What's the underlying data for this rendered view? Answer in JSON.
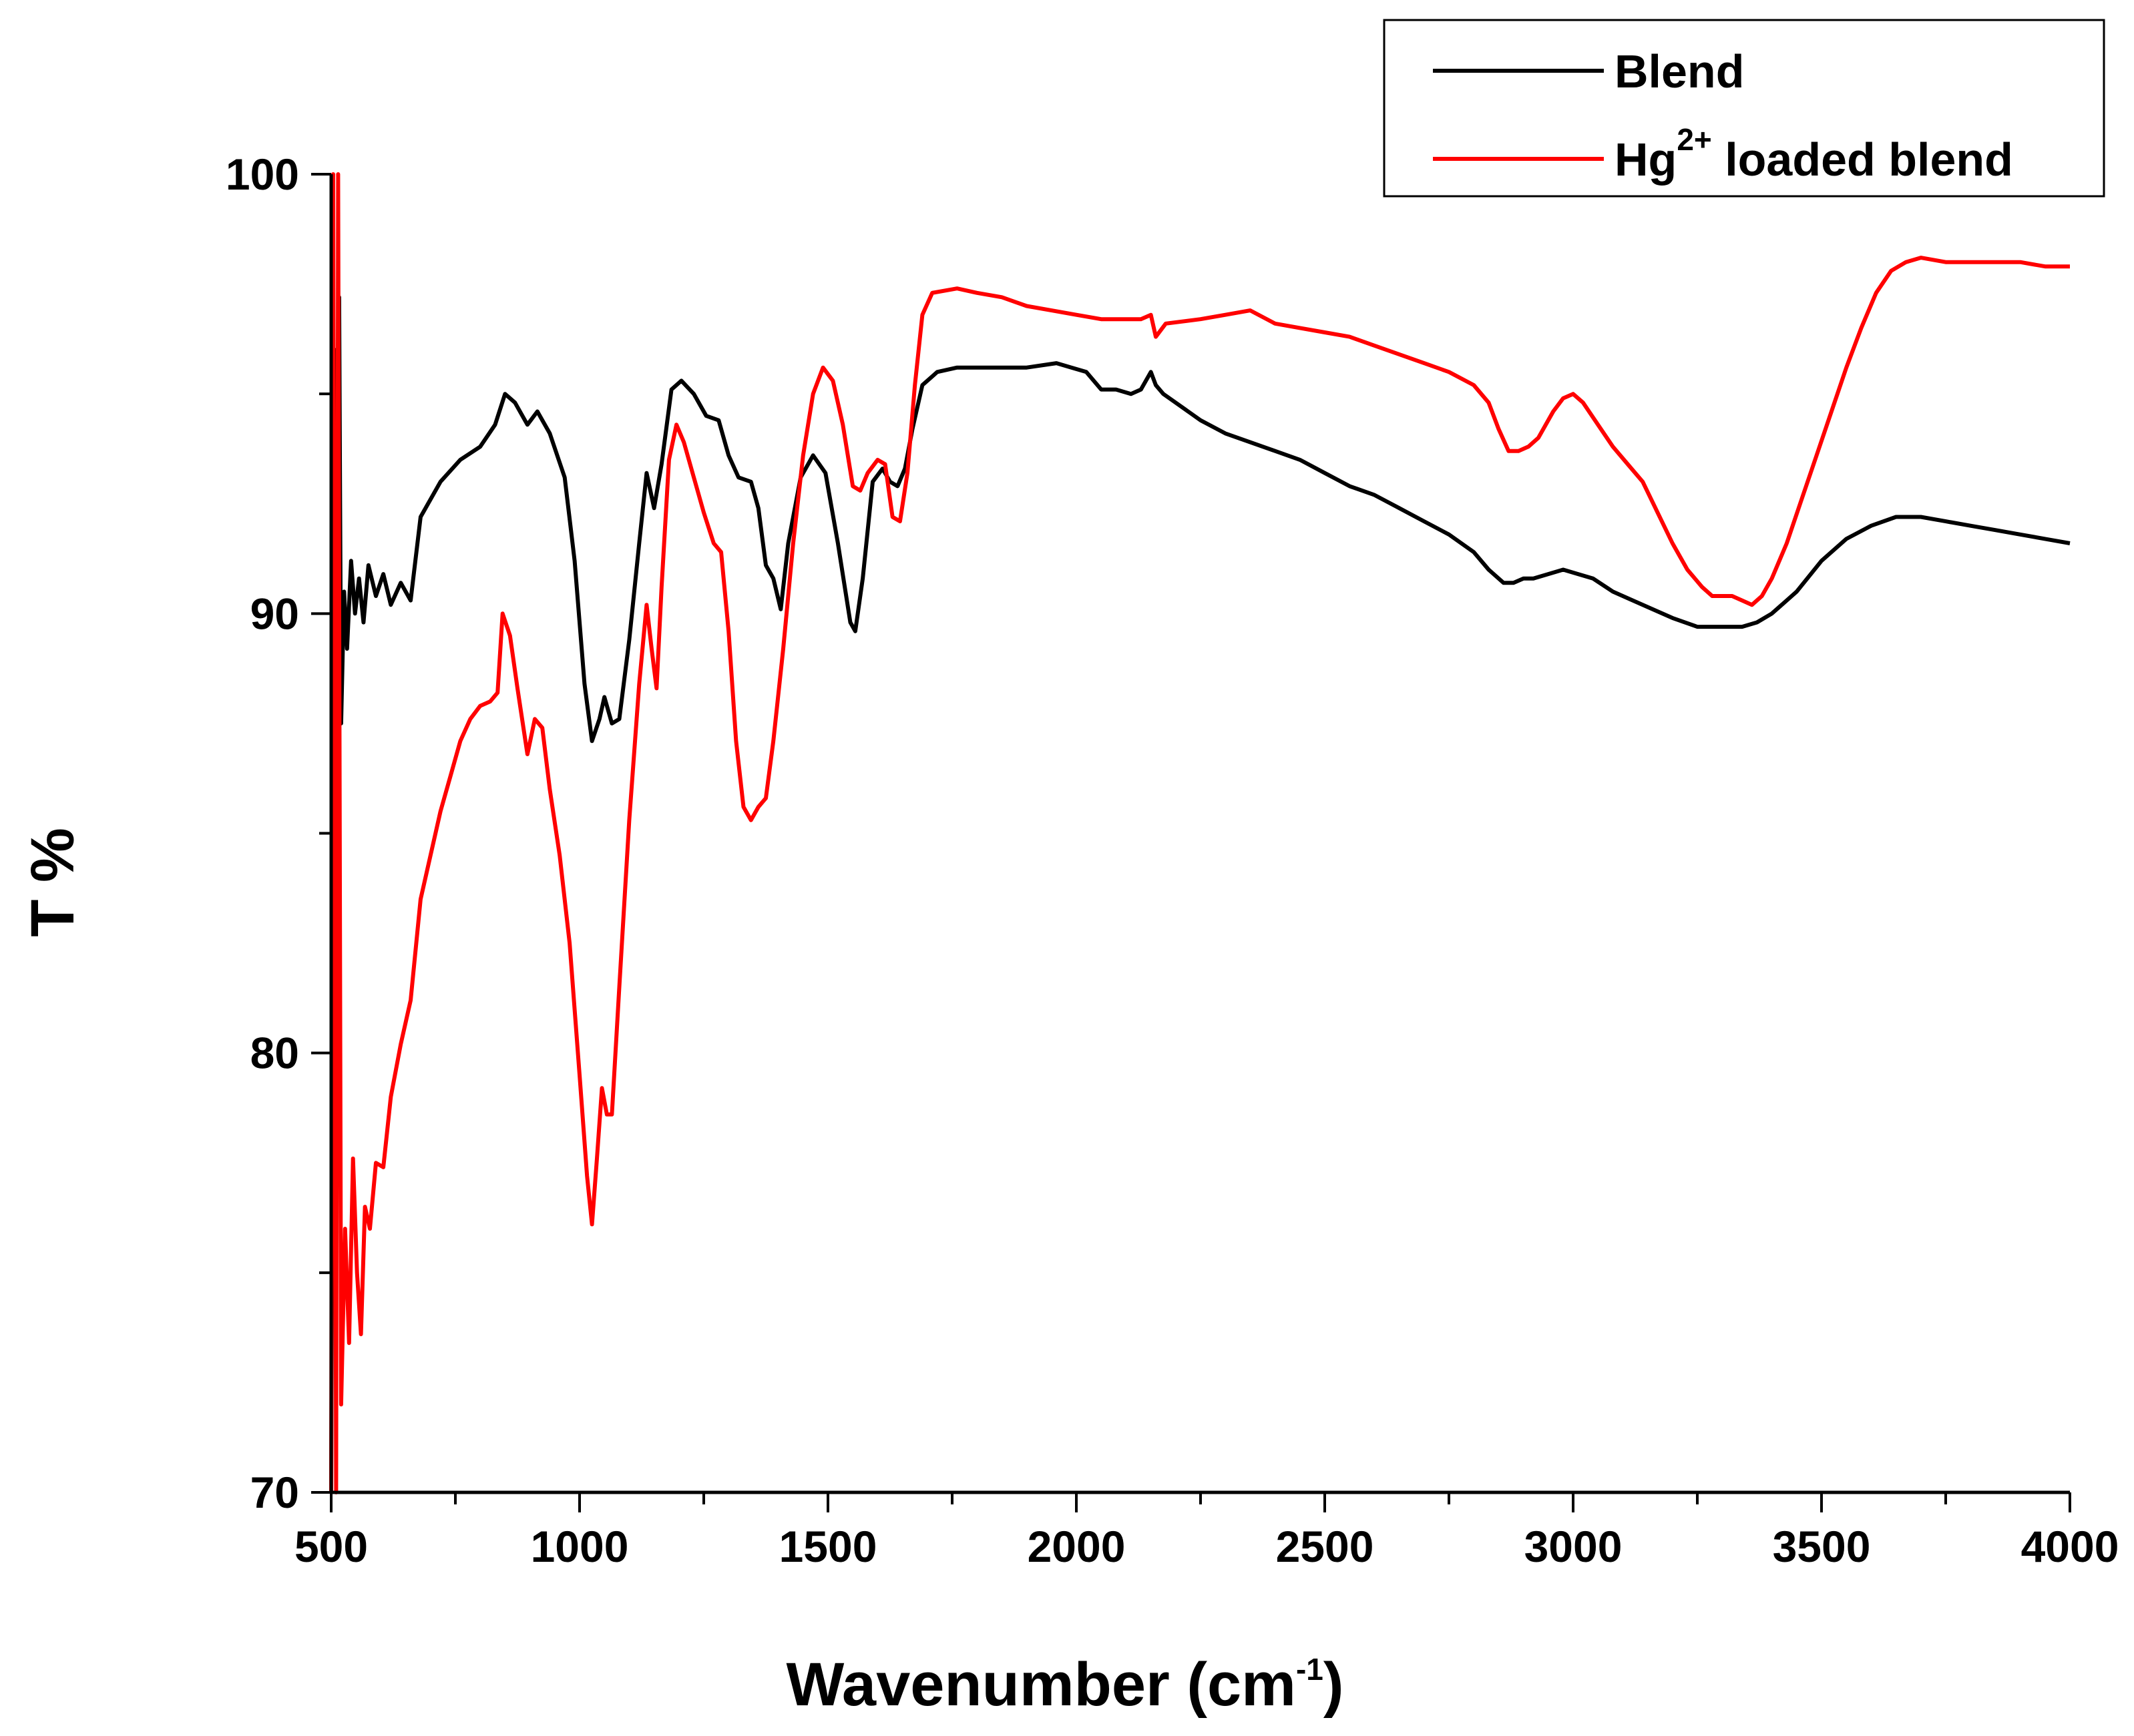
{
  "chart_data": {
    "type": "line",
    "title": "",
    "xlabel": {
      "main": "Wavenumber (cm",
      "sup": "-1",
      "close": ")"
    },
    "ylabel": "T %",
    "xlim": [
      500,
      4000
    ],
    "ylim": [
      70,
      100
    ],
    "x_ticks": [
      500,
      1000,
      1500,
      2000,
      2500,
      3000,
      3500,
      4000
    ],
    "y_ticks": [
      70,
      80,
      90,
      100
    ],
    "x_minor_step": 250,
    "y_minor_step": 5,
    "grid": false,
    "legend_position": "top-right",
    "series": [
      {
        "name": "Blend",
        "color": "#000000",
        "legend_label": "Blend",
        "points": [
          [
            500,
            70
          ],
          [
            508,
            96
          ],
          [
            512,
            88
          ],
          [
            516,
            97.2
          ],
          [
            520,
            87.5
          ],
          [
            526,
            90.5
          ],
          [
            532,
            89.2
          ],
          [
            540,
            91.2
          ],
          [
            548,
            90
          ],
          [
            556,
            90.8
          ],
          [
            565,
            89.8
          ],
          [
            575,
            91.1
          ],
          [
            590,
            90.4
          ],
          [
            605,
            90.9
          ],
          [
            620,
            90.2
          ],
          [
            640,
            90.7
          ],
          [
            660,
            90.3
          ],
          [
            680,
            92.2
          ],
          [
            720,
            93
          ],
          [
            760,
            93.5
          ],
          [
            800,
            93.8
          ],
          [
            830,
            94.3
          ],
          [
            850,
            95
          ],
          [
            870,
            94.8
          ],
          [
            895,
            94.3
          ],
          [
            915,
            94.6
          ],
          [
            940,
            94.1
          ],
          [
            970,
            93.1
          ],
          [
            990,
            91.2
          ],
          [
            1010,
            88.4
          ],
          [
            1025,
            87.1
          ],
          [
            1040,
            87.6
          ],
          [
            1050,
            88.1
          ],
          [
            1065,
            87.5
          ],
          [
            1080,
            87.6
          ],
          [
            1100,
            89.4
          ],
          [
            1120,
            91.6
          ],
          [
            1135,
            93.2
          ],
          [
            1150,
            92.4
          ],
          [
            1165,
            93.4
          ],
          [
            1185,
            95.1
          ],
          [
            1205,
            95.3
          ],
          [
            1230,
            95
          ],
          [
            1255,
            94.5
          ],
          [
            1280,
            94.4
          ],
          [
            1300,
            93.6
          ],
          [
            1320,
            93.1
          ],
          [
            1345,
            93
          ],
          [
            1360,
            92.4
          ],
          [
            1375,
            91.1
          ],
          [
            1390,
            90.8
          ],
          [
            1405,
            90.1
          ],
          [
            1420,
            91.6
          ],
          [
            1445,
            93.1
          ],
          [
            1470,
            93.6
          ],
          [
            1495,
            93.2
          ],
          [
            1520,
            91.6
          ],
          [
            1545,
            89.8
          ],
          [
            1555,
            89.6
          ],
          [
            1570,
            90.8
          ],
          [
            1590,
            93
          ],
          [
            1610,
            93.3
          ],
          [
            1625,
            93
          ],
          [
            1640,
            92.9
          ],
          [
            1655,
            93.3
          ],
          [
            1670,
            94.2
          ],
          [
            1690,
            95.2
          ],
          [
            1720,
            95.5
          ],
          [
            1760,
            95.6
          ],
          [
            1800,
            95.6
          ],
          [
            1900,
            95.6
          ],
          [
            1960,
            95.7
          ],
          [
            1990,
            95.6
          ],
          [
            2020,
            95.5
          ],
          [
            2050,
            95.1
          ],
          [
            2080,
            95.1
          ],
          [
            2110,
            95
          ],
          [
            2130,
            95.1
          ],
          [
            2150,
            95.5
          ],
          [
            2160,
            95.2
          ],
          [
            2175,
            95
          ],
          [
            2200,
            94.8
          ],
          [
            2250,
            94.4
          ],
          [
            2300,
            94.1
          ],
          [
            2350,
            93.9
          ],
          [
            2400,
            93.7
          ],
          [
            2450,
            93.5
          ],
          [
            2500,
            93.2
          ],
          [
            2550,
            92.9
          ],
          [
            2600,
            92.7
          ],
          [
            2650,
            92.4
          ],
          [
            2700,
            92.1
          ],
          [
            2750,
            91.8
          ],
          [
            2800,
            91.4
          ],
          [
            2830,
            91
          ],
          [
            2860,
            90.7
          ],
          [
            2880,
            90.7
          ],
          [
            2900,
            90.8
          ],
          [
            2920,
            90.8
          ],
          [
            2950,
            90.9
          ],
          [
            2980,
            91
          ],
          [
            3010,
            90.9
          ],
          [
            3040,
            90.8
          ],
          [
            3080,
            90.5
          ],
          [
            3120,
            90.3
          ],
          [
            3160,
            90.1
          ],
          [
            3200,
            89.9
          ],
          [
            3250,
            89.7
          ],
          [
            3300,
            89.7
          ],
          [
            3340,
            89.7
          ],
          [
            3370,
            89.8
          ],
          [
            3400,
            90
          ],
          [
            3450,
            90.5
          ],
          [
            3500,
            91.2
          ],
          [
            3550,
            91.7
          ],
          [
            3600,
            92
          ],
          [
            3650,
            92.2
          ],
          [
            3700,
            92.2
          ],
          [
            3750,
            92.1
          ],
          [
            3800,
            92
          ],
          [
            3850,
            91.9
          ],
          [
            3900,
            91.8
          ],
          [
            3950,
            91.7
          ],
          [
            4000,
            91.6
          ]
        ]
      },
      {
        "name": "Hg2+ loaded blend",
        "color": "#ff0000",
        "legend_label": {
          "main": "Hg",
          "sup": "2+",
          "rest": " loaded blend"
        },
        "points": [
          [
            500,
            70
          ],
          [
            504,
            100
          ],
          [
            510,
            70
          ],
          [
            514,
            100
          ],
          [
            520,
            72
          ],
          [
            528,
            76
          ],
          [
            536,
            73.4
          ],
          [
            544,
            77.6
          ],
          [
            552,
            75
          ],
          [
            560,
            73.6
          ],
          [
            568,
            76.5
          ],
          [
            578,
            76
          ],
          [
            590,
            77.5
          ],
          [
            605,
            77.4
          ],
          [
            620,
            79
          ],
          [
            640,
            80.2
          ],
          [
            660,
            81.2
          ],
          [
            680,
            83.5
          ],
          [
            700,
            84.5
          ],
          [
            720,
            85.5
          ],
          [
            740,
            86.3
          ],
          [
            760,
            87.1
          ],
          [
            780,
            87.6
          ],
          [
            800,
            87.9
          ],
          [
            820,
            88
          ],
          [
            835,
            88.2
          ],
          [
            845,
            90
          ],
          [
            860,
            89.5
          ],
          [
            875,
            88.3
          ],
          [
            895,
            86.8
          ],
          [
            910,
            87.6
          ],
          [
            925,
            87.4
          ],
          [
            940,
            86
          ],
          [
            960,
            84.5
          ],
          [
            980,
            82.5
          ],
          [
            1000,
            79.5
          ],
          [
            1015,
            77.2
          ],
          [
            1025,
            76.1
          ],
          [
            1035,
            77.6
          ],
          [
            1045,
            79.2
          ],
          [
            1055,
            78.6
          ],
          [
            1065,
            78.6
          ],
          [
            1080,
            81.5
          ],
          [
            1100,
            85.3
          ],
          [
            1120,
            88.4
          ],
          [
            1135,
            90.2
          ],
          [
            1145,
            89.2
          ],
          [
            1155,
            88.3
          ],
          [
            1165,
            90.6
          ],
          [
            1180,
            93.5
          ],
          [
            1195,
            94.3
          ],
          [
            1210,
            93.9
          ],
          [
            1230,
            93.1
          ],
          [
            1250,
            92.3
          ],
          [
            1270,
            91.6
          ],
          [
            1285,
            91.4
          ],
          [
            1300,
            89.6
          ],
          [
            1315,
            87.1
          ],
          [
            1330,
            85.6
          ],
          [
            1345,
            85.3
          ],
          [
            1360,
            85.6
          ],
          [
            1375,
            85.8
          ],
          [
            1390,
            87.1
          ],
          [
            1410,
            89.2
          ],
          [
            1430,
            91.6
          ],
          [
            1450,
            93.6
          ],
          [
            1470,
            95
          ],
          [
            1490,
            95.6
          ],
          [
            1510,
            95.3
          ],
          [
            1530,
            94.3
          ],
          [
            1550,
            92.9
          ],
          [
            1565,
            92.8
          ],
          [
            1580,
            93.2
          ],
          [
            1600,
            93.5
          ],
          [
            1615,
            93.4
          ],
          [
            1630,
            92.2
          ],
          [
            1645,
            92.1
          ],
          [
            1660,
            93.2
          ],
          [
            1675,
            95.2
          ],
          [
            1690,
            96.8
          ],
          [
            1710,
            97.3
          ],
          [
            1760,
            97.4
          ],
          [
            1800,
            97.3
          ],
          [
            1850,
            97.2
          ],
          [
            1900,
            97
          ],
          [
            1950,
            96.9
          ],
          [
            2000,
            96.8
          ],
          [
            2050,
            96.7
          ],
          [
            2100,
            96.7
          ],
          [
            2130,
            96.7
          ],
          [
            2150,
            96.8
          ],
          [
            2160,
            96.3
          ],
          [
            2180,
            96.6
          ],
          [
            2250,
            96.7
          ],
          [
            2300,
            96.8
          ],
          [
            2350,
            96.9
          ],
          [
            2400,
            96.6
          ],
          [
            2450,
            96.5
          ],
          [
            2500,
            96.4
          ],
          [
            2550,
            96.3
          ],
          [
            2600,
            96.1
          ],
          [
            2650,
            95.9
          ],
          [
            2700,
            95.7
          ],
          [
            2750,
            95.5
          ],
          [
            2800,
            95.2
          ],
          [
            2830,
            94.8
          ],
          [
            2850,
            94.2
          ],
          [
            2870,
            93.7
          ],
          [
            2890,
            93.7
          ],
          [
            2910,
            93.8
          ],
          [
            2930,
            94
          ],
          [
            2960,
            94.6
          ],
          [
            2980,
            94.9
          ],
          [
            3000,
            95
          ],
          [
            3020,
            94.8
          ],
          [
            3050,
            94.3
          ],
          [
            3080,
            93.8
          ],
          [
            3110,
            93.4
          ],
          [
            3140,
            93
          ],
          [
            3170,
            92.3
          ],
          [
            3200,
            91.6
          ],
          [
            3230,
            91
          ],
          [
            3260,
            90.6
          ],
          [
            3280,
            90.4
          ],
          [
            3300,
            90.4
          ],
          [
            3320,
            90.4
          ],
          [
            3340,
            90.3
          ],
          [
            3360,
            90.2
          ],
          [
            3380,
            90.4
          ],
          [
            3400,
            90.8
          ],
          [
            3430,
            91.6
          ],
          [
            3460,
            92.6
          ],
          [
            3490,
            93.6
          ],
          [
            3520,
            94.6
          ],
          [
            3550,
            95.6
          ],
          [
            3580,
            96.5
          ],
          [
            3610,
            97.3
          ],
          [
            3640,
            97.8
          ],
          [
            3670,
            98
          ],
          [
            3700,
            98.1
          ],
          [
            3750,
            98
          ],
          [
            3800,
            98
          ],
          [
            3850,
            98
          ],
          [
            3900,
            98
          ],
          [
            3950,
            97.9
          ],
          [
            4000,
            97.9
          ]
        ]
      }
    ]
  }
}
